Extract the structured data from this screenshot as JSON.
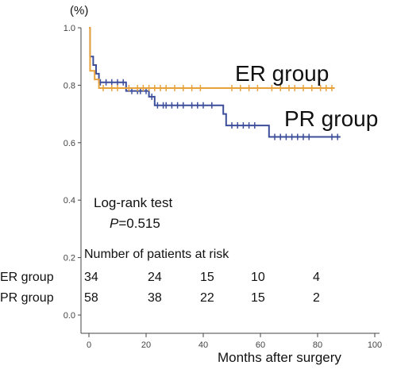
{
  "chart_data": {
    "type": "line",
    "subtype": "kaplan-meier survival curve",
    "y_unit": "(%)",
    "xlabel": "Months after surgery",
    "xlim": [
      0,
      100
    ],
    "ylim": [
      0.0,
      1.0
    ],
    "x_ticks": [
      "0",
      "20",
      "40",
      "60",
      "80",
      "100"
    ],
    "y_ticks": [
      "0.0",
      "0.2",
      "0.4",
      "0.6",
      "0.8",
      "1.0"
    ],
    "grid": false,
    "series": [
      {
        "name": "ER group",
        "color": "#E8A23C",
        "steps": [
          [
            0,
            1.0
          ],
          [
            0.4,
            0.85
          ],
          [
            2,
            0.82
          ],
          [
            3.5,
            0.79
          ],
          [
            86,
            0.79
          ]
        ],
        "censored": [
          5,
          8,
          10,
          14,
          17,
          19,
          21,
          23,
          25,
          27,
          30,
          33,
          36,
          39,
          50,
          53,
          56,
          59,
          64,
          67,
          70,
          72,
          75,
          78,
          81,
          83,
          85
        ]
      },
      {
        "name": "PR group",
        "color": "#3C4E9A",
        "steps": [
          [
            0,
            1.0
          ],
          [
            0.4,
            0.9
          ],
          [
            1.5,
            0.87
          ],
          [
            2.5,
            0.84
          ],
          [
            3.5,
            0.81
          ],
          [
            13,
            0.78
          ],
          [
            21,
            0.76
          ],
          [
            23,
            0.73
          ],
          [
            47,
            0.7
          ],
          [
            48,
            0.66
          ],
          [
            63,
            0.62
          ],
          [
            88,
            0.62
          ]
        ],
        "censored": [
          4,
          6,
          8,
          10,
          12,
          15,
          17,
          18,
          20,
          22,
          24,
          26,
          27,
          29,
          31,
          33,
          36,
          38,
          40,
          43,
          50,
          52,
          54,
          56,
          58,
          65,
          67,
          69,
          71,
          73,
          75,
          77,
          85,
          87
        ]
      }
    ],
    "annotations": {
      "er_label": "ER group",
      "pr_label": "PR group",
      "test_name": "Log-rank test",
      "p_symbol": "P",
      "p_value": "=0.515"
    },
    "risk_table": {
      "title": "Number of patients at risk",
      "rows": [
        {
          "label": "ER group",
          "values": [
            "34",
            "24",
            "15",
            "10",
            "4"
          ]
        },
        {
          "label": "PR group",
          "values": [
            "58",
            "38",
            "22",
            "15",
            "2"
          ]
        }
      ]
    }
  }
}
